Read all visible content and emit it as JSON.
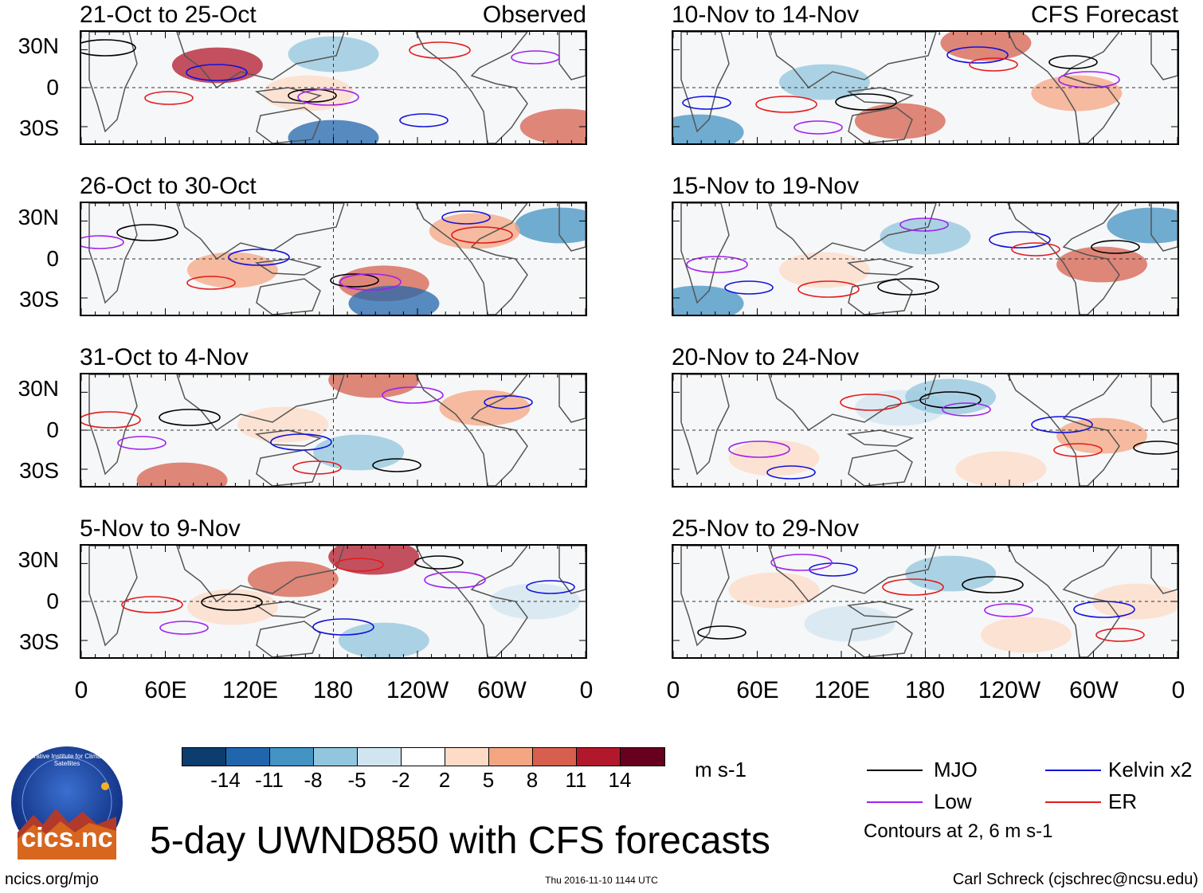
{
  "panels_observed": [
    {
      "title": "21-Oct to 25-Oct",
      "tag": "Observed"
    },
    {
      "title": "26-Oct to 30-Oct"
    },
    {
      "title": "31-Oct to 4-Nov"
    },
    {
      "title": "5-Nov to 9-Nov"
    }
  ],
  "panels_forecast": [
    {
      "title": "10-Nov to 14-Nov",
      "tag": "CFS Forecast"
    },
    {
      "title": "15-Nov to 19-Nov"
    },
    {
      "title": "20-Nov to 24-Nov"
    },
    {
      "title": "25-Nov to 29-Nov"
    }
  ],
  "lat_labels": [
    "30N",
    "0",
    "30S"
  ],
  "lon_labels": [
    "0",
    "60E",
    "120E",
    "180",
    "120W",
    "60W",
    "0"
  ],
  "colorbar": {
    "labels": [
      "-14",
      "-11",
      "-8",
      "-5",
      "-2",
      "2",
      "5",
      "8",
      "11",
      "14"
    ],
    "colors": [
      "#0d3c6e",
      "#2166ac",
      "#4393c3",
      "#92c5de",
      "#d1e5f0",
      "#ffffff",
      "#fddbc7",
      "#f4a582",
      "#d6604d",
      "#b2182b",
      "#67001f"
    ],
    "units": "m s-1"
  },
  "legend": {
    "items": [
      {
        "label": "MJO",
        "color": "#000000"
      },
      {
        "label": "Kelvin x2",
        "color": "#1111dd"
      },
      {
        "label": "Low",
        "color": "#a020f0"
      },
      {
        "label": "ER",
        "color": "#e41a1c"
      }
    ],
    "note": "Contours at 2, 6 m s-1"
  },
  "main_title": "5-day UWND850 with CFS forecasts",
  "logo_text": "cics.nc",
  "logo_ring_text": "Cooperative Institute for Climate and Satellites",
  "footer": {
    "left": "ncics.org/mjo",
    "center": "Thu 2016-11-10 1144 UTC",
    "right": "Carl Schreck (cjschrec@ncsu.edu)"
  }
}
